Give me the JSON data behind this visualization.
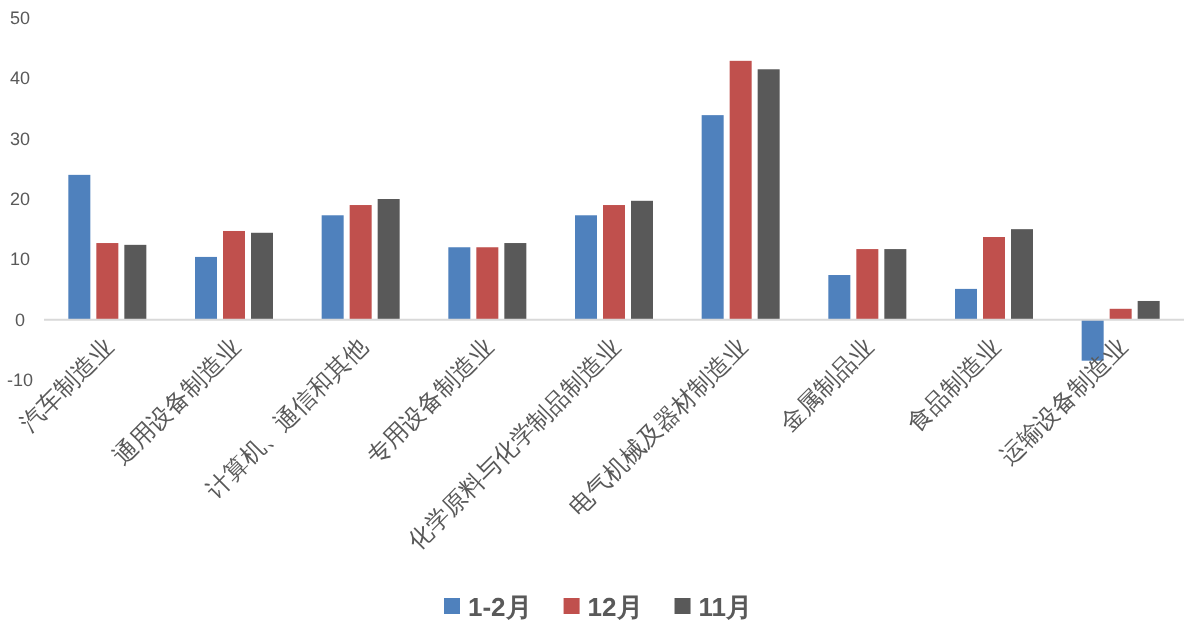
{
  "chart_data": {
    "type": "bar",
    "categories": [
      "汽车制造业",
      "通用设备制造业",
      "计算机、通信和其他",
      "专用设备制造业",
      "化学原料与化学制品制造业",
      "电气机械及器材制造业",
      "金属制品业",
      "食品制造业",
      "运输设备制造业"
    ],
    "series": [
      {
        "name": "1-2月",
        "color": "#4f81bd",
        "values": [
          24.0,
          10.4,
          17.3,
          12.0,
          17.3,
          33.9,
          7.4,
          5.1,
          -6.8
        ]
      },
      {
        "name": "12月",
        "color": "#c0504d",
        "values": [
          12.7,
          14.7,
          19.0,
          12.0,
          19.0,
          42.9,
          11.7,
          13.7,
          1.8
        ]
      },
      {
        "name": "11月",
        "color": "#595959",
        "values": [
          12.4,
          14.4,
          20.0,
          12.7,
          19.7,
          41.5,
          11.7,
          15.0,
          3.1
        ]
      }
    ],
    "ylim": [
      -10,
      50
    ],
    "yticks": [
      -10,
      0,
      10,
      20,
      30,
      40,
      50
    ],
    "grid": false,
    "legend": "bottom"
  }
}
